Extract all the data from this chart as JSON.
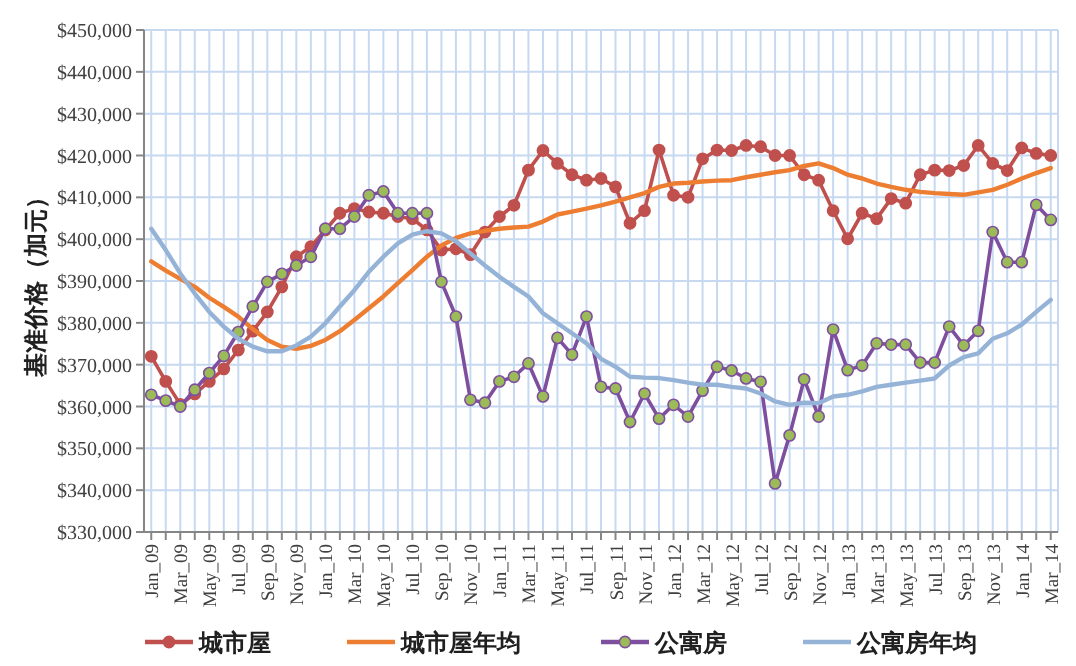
{
  "chart_data": {
    "type": "line",
    "ylabel": "基准价格（加元）",
    "categories": [
      "Jan_09",
      null,
      "Mar_09",
      null,
      "May_09",
      null,
      "Jul_09",
      null,
      "Sep_09",
      null,
      "Nov_09",
      null,
      "Jan_10",
      null,
      "Mar_10",
      null,
      "May_10",
      null,
      "Jul_10",
      null,
      "Sep_10",
      null,
      "Nov_10",
      null,
      "Jan_11",
      null,
      "Mar_11",
      null,
      "May_11",
      null,
      "Jul_11",
      null,
      "Sep_11",
      null,
      "Nov_11",
      null,
      "Jan_12",
      null,
      "Mar_12",
      null,
      "May_12",
      null,
      "Jul_12",
      null,
      "Sep_12",
      null,
      "Nov_12",
      null,
      "Jan_13",
      null,
      "Mar_13",
      null,
      "May_13",
      null,
      "Jul_13",
      null,
      "Sep_13",
      null,
      "Nov_13",
      null,
      "Jan_14",
      null,
      "Mar_14"
    ],
    "ylim": [
      330000,
      450000
    ],
    "yticks": [
      {
        "value": 330000,
        "label": "$330,000"
      },
      {
        "value": 340000,
        "label": "$340,000"
      },
      {
        "value": 350000,
        "label": "$350,000"
      },
      {
        "value": 360000,
        "label": "$360,000"
      },
      {
        "value": 370000,
        "label": "$370,000"
      },
      {
        "value": 380000,
        "label": "$380,000"
      },
      {
        "value": 390000,
        "label": "$390,000"
      },
      {
        "value": 400000,
        "label": "$400,000"
      },
      {
        "value": 410000,
        "label": "$410,000"
      },
      {
        "value": 420000,
        "label": "$420,000"
      },
      {
        "value": 430000,
        "label": "$430,000"
      },
      {
        "value": 440000,
        "label": "$440,000"
      },
      {
        "value": 450000,
        "label": "$450,000"
      }
    ],
    "grid": true,
    "legend": "bottom",
    "series": [
      {
        "name": "城市屋",
        "color": "#c0504d",
        "marker": "circle",
        "values": [
          372000,
          366000,
          360500,
          363000,
          366000,
          369000,
          373500,
          378000,
          382600,
          388600,
          395800,
          398200,
          402200,
          406200,
          407300,
          406500,
          406200,
          405400,
          404900,
          402200,
          397400,
          397700,
          396300,
          401700,
          405400,
          408100,
          416500,
          421200,
          418100,
          415400,
          414100,
          414500,
          412500,
          403800,
          406800,
          421300,
          410500,
          410000,
          419200,
          421300,
          421200,
          422400,
          422100,
          420000,
          420000,
          415400,
          414100,
          406800,
          400100,
          406200,
          404900,
          409700,
          408600,
          415400,
          416500,
          416400,
          417600,
          422400,
          418100,
          416400,
          421800,
          420500,
          420000
        ]
      },
      {
        "name": "城市屋年均",
        "color": "#ed7d31",
        "marker": "none",
        "values": [
          394700,
          392500,
          390500,
          388600,
          386000,
          383800,
          381500,
          378500,
          375900,
          374300,
          373800,
          374500,
          375900,
          378000,
          380700,
          383500,
          386300,
          389500,
          392600,
          395800,
          398500,
          400300,
          401400,
          402000,
          402500,
          402800,
          403000,
          404200,
          405900,
          406600,
          407300,
          408100,
          409000,
          410000,
          411000,
          412500,
          413300,
          413500,
          413800,
          414000,
          414100,
          414800,
          415400,
          416000,
          416500,
          417500,
          418100,
          417000,
          415400,
          414500,
          413300,
          412500,
          411800,
          411300,
          411000,
          410800,
          410600,
          411200,
          411800,
          413000,
          414500,
          415800,
          417000
        ]
      },
      {
        "name": "公寓房",
        "color": "#7f4f9f",
        "marker": "circle",
        "colors": [
          "#9bbb59",
          "#9bbb59",
          "#9bbb59",
          "#9bbb59",
          "#9bbb59",
          "#9bbb59",
          "#9bbb59",
          "#9bbb59",
          "#9bbb59",
          "#9bbb59",
          "#9bbb59",
          "#9bbb59",
          "#9bbb59",
          "#9bbb59",
          "#9bbb59",
          "#9bbb59",
          "#9bbb59",
          "#9bbb59",
          "#9bbb59",
          "#9bbb59",
          "#9bbb59",
          "#9bbb59",
          "#9bbb59",
          "#9bbb59",
          "#9bbb59",
          "#9bbb59",
          "#9bbb59",
          "#9bbb59",
          "#9bbb59",
          "#9bbb59",
          "#9bbb59",
          "#9bbb59",
          "#9bbb59",
          "#9bbb59",
          "#9bbb59",
          "#9bbb59",
          "#9bbb59",
          "#9bbb59",
          "#9bbb59",
          "#9bbb59",
          "#9bbb59",
          "#9bbb59",
          "#9bbb59",
          "#9bbb59",
          "#9bbb59",
          "#9bbb59",
          "#9bbb59",
          "#9bbb59",
          "#9bbb59",
          "#9bbb59",
          "#9bbb59",
          "#9bbb59",
          "#9bbb59",
          "#9bbb59",
          "#9bbb59",
          "#9bbb59",
          "#9bbb59",
          "#9bbb59",
          "#9bbb59",
          "#9bbb59",
          "#9bbb59",
          "#9bbb59",
          "#9bbb59"
        ],
        "values": [
          362800,
          361400,
          360000,
          364000,
          368000,
          372100,
          377800,
          383900,
          389800,
          391700,
          393700,
          395800,
          402500,
          402500,
          405400,
          410500,
          411400,
          406200,
          406200,
          406200,
          389800,
          381500,
          361600,
          360900,
          366000,
          367100,
          370300,
          362400,
          376400,
          372400,
          381500,
          364700,
          364300,
          356300,
          363100,
          357100,
          360400,
          357600,
          363800,
          369500,
          368600,
          366700,
          365900,
          341600,
          353100,
          366500,
          357600,
          378400,
          368700,
          369800,
          375100,
          374800,
          374800,
          370500,
          370500,
          379100,
          374600,
          378100,
          401700,
          394500,
          394500,
          408200,
          404600
        ]
      },
      {
        "name": "公寓房年均",
        "color": "#95b3d7",
        "marker": "none",
        "values": [
          402500,
          397400,
          391800,
          387000,
          382600,
          379100,
          376200,
          374300,
          373200,
          373200,
          374600,
          376700,
          379900,
          383900,
          387800,
          392200,
          395800,
          399000,
          401100,
          401900,
          401400,
          399500,
          396600,
          393700,
          391000,
          388600,
          386300,
          382300,
          379900,
          377500,
          375100,
          371400,
          369500,
          367100,
          366900,
          366800,
          366300,
          365700,
          365200,
          365200,
          364700,
          364300,
          363100,
          361200,
          360400,
          360900,
          360800,
          362400,
          362800,
          363600,
          364700,
          365200,
          365700,
          366200,
          366700,
          369800,
          371800,
          372700,
          376200,
          377500,
          379600,
          382600,
          385500
        ]
      }
    ]
  }
}
